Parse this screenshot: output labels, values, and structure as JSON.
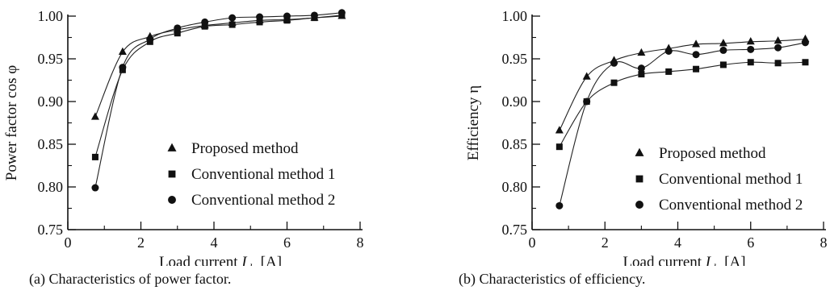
{
  "chart_data": [
    {
      "type": "scatter",
      "title": "",
      "caption": "(a) Characteristics of power factor.",
      "xlabel": "Load current",
      "xlabel_symbol": "I",
      "xlabel_subscript": "dc",
      "xlabel_unit": "[A]",
      "ylabel": "Power  factor  cos",
      "ylabel_symbol": "φ",
      "xlim": [
        0,
        8
      ],
      "ylim": [
        0.75,
        1.0
      ],
      "xticks": [
        "0",
        "2",
        "4",
        "6",
        "8"
      ],
      "yticks": [
        "0.75",
        "0.80",
        "0.85",
        "0.90",
        "0.95",
        "1.00"
      ],
      "grid": false,
      "legend_position": "center-right",
      "series": [
        {
          "name": "Proposed method",
          "marker": "triangle",
          "x": [
            0.75,
            1.5,
            2.25,
            3.0,
            3.75,
            4.5,
            5.25,
            6.0,
            6.75,
            7.5
          ],
          "y": [
            0.882,
            0.958,
            0.976,
            0.984,
            0.989,
            0.992,
            0.995,
            0.996,
            0.998,
            1.0
          ]
        },
        {
          "name": "Conventional method 1",
          "marker": "square",
          "x": [
            0.75,
            1.5,
            2.25,
            3.0,
            3.75,
            4.5,
            5.25,
            6.0,
            6.75,
            7.5
          ],
          "y": [
            0.835,
            0.937,
            0.97,
            0.98,
            0.988,
            0.99,
            0.993,
            0.995,
            0.998,
            1.001
          ]
        },
        {
          "name": "Conventional method 2",
          "marker": "circle",
          "x": [
            0.75,
            1.5,
            2.25,
            3.0,
            3.75,
            4.5,
            5.25,
            6.0,
            6.75,
            7.5
          ],
          "y": [
            0.799,
            0.94,
            0.973,
            0.986,
            0.993,
            0.998,
            0.999,
            1.0,
            1.001,
            1.004
          ]
        }
      ]
    },
    {
      "type": "scatter",
      "title": "",
      "caption": "(b) Characteristics of efficiency.",
      "xlabel": "Load current",
      "xlabel_symbol": "I",
      "xlabel_subscript": "dc",
      "xlabel_unit": "[A]",
      "ylabel": "Efficiency",
      "ylabel_symbol": "η",
      "xlim": [
        0,
        8
      ],
      "ylim": [
        0.75,
        1.0
      ],
      "xticks": [
        "0",
        "2",
        "4",
        "6",
        "8"
      ],
      "yticks": [
        "0.75",
        "0.80",
        "0.85",
        "0.90",
        "0.95",
        "1.00"
      ],
      "grid": false,
      "legend_position": "center-right",
      "series": [
        {
          "name": "Proposed method",
          "marker": "triangle",
          "x": [
            0.75,
            1.5,
            2.25,
            3.0,
            3.75,
            4.5,
            5.25,
            6.0,
            6.75,
            7.5
          ],
          "y": [
            0.866,
            0.929,
            0.948,
            0.957,
            0.962,
            0.967,
            0.968,
            0.97,
            0.971,
            0.973
          ]
        },
        {
          "name": "Conventional method 1",
          "marker": "square",
          "x": [
            0.75,
            1.5,
            2.25,
            3.0,
            3.75,
            4.5,
            5.25,
            6.0,
            6.75,
            7.5
          ],
          "y": [
            0.847,
            0.9,
            0.922,
            0.932,
            0.935,
            0.938,
            0.943,
            0.946,
            0.945,
            0.946
          ]
        },
        {
          "name": "Conventional method 2",
          "marker": "circle",
          "x": [
            0.75,
            1.5,
            2.25,
            3.0,
            3.75,
            4.5,
            5.25,
            6.0,
            6.75,
            7.5
          ],
          "y": [
            0.778,
            0.9,
            0.945,
            0.939,
            0.959,
            0.955,
            0.96,
            0.961,
            0.963,
            0.969
          ]
        }
      ]
    }
  ]
}
